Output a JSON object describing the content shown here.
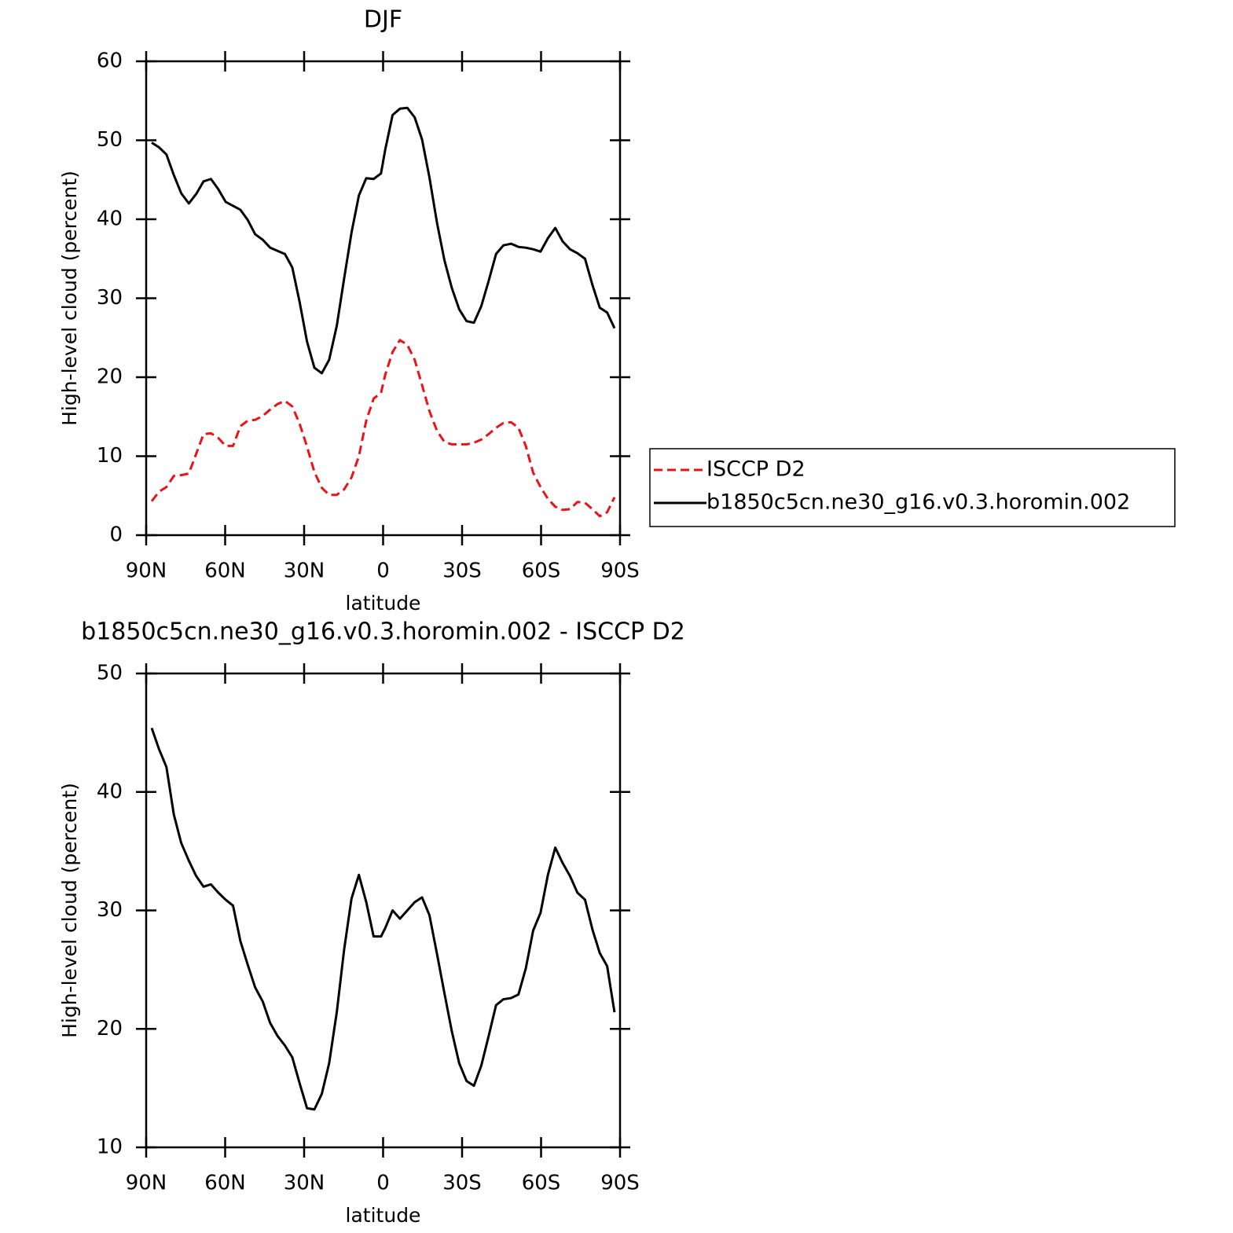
{
  "chart_data": [
    {
      "type": "line",
      "title": "DJF",
      "xlabel": "latitude",
      "ylabel": "High-level cloud (percent)",
      "x": [
        87.9,
        85.1,
        82.3,
        79.5,
        76.7,
        73.8,
        71.0,
        68.2,
        65.4,
        62.6,
        59.8,
        57.0,
        54.2,
        51.4,
        48.6,
        45.7,
        42.9,
        40.1,
        37.3,
        34.5,
        31.7,
        28.9,
        26.1,
        23.3,
        20.5,
        17.6,
        14.8,
        12.0,
        9.2,
        6.4,
        3.6,
        0.8,
        -0.8,
        -3.6,
        -6.4,
        -9.2,
        -12.0,
        -14.8,
        -17.6,
        -20.5,
        -23.3,
        -26.1,
        -28.9,
        -31.7,
        -34.5,
        -37.3,
        -40.1,
        -42.9,
        -45.7,
        -48.6,
        -51.4,
        -54.2,
        -57.0,
        -59.8,
        -62.6,
        -65.4,
        -68.2,
        -71.0,
        -73.8,
        -76.7,
        -79.5,
        -82.3,
        -85.1,
        -87.9
      ],
      "series": [
        {
          "name": "ISCCP D2",
          "color": "#e8141a",
          "dash": true,
          "values": [
            4.3,
            5.5,
            6.1,
            7.5,
            7.6,
            7.8,
            10.3,
            12.8,
            12.9,
            12.3,
            11.3,
            11.3,
            13.8,
            14.5,
            14.6,
            15.1,
            15.9,
            16.6,
            17.0,
            16.3,
            14.1,
            11.2,
            8.0,
            6.0,
            5.1,
            5.1,
            5.8,
            7.3,
            10.0,
            14.5,
            17.3,
            18.0,
            20.3,
            23.2,
            24.7,
            24.1,
            22.2,
            19.0,
            15.7,
            13.2,
            11.8,
            11.5,
            11.5,
            11.5,
            11.7,
            12.1,
            12.8,
            13.6,
            14.2,
            14.3,
            13.6,
            11.3,
            7.9,
            6.1,
            4.6,
            3.6,
            3.2,
            3.3,
            4.2,
            4.1,
            3.3,
            2.4,
            2.9,
            4.8
          ]
        },
        {
          "name": "b1850c5cn.ne30_g16.v0.3.horomin.002",
          "color": "#000000",
          "dash": false,
          "values": [
            49.7,
            49.1,
            48.2,
            45.6,
            43.3,
            42.0,
            43.2,
            44.8,
            45.1,
            43.8,
            42.2,
            41.7,
            41.2,
            39.9,
            38.1,
            37.4,
            36.4,
            36.0,
            35.6,
            33.9,
            29.5,
            24.5,
            21.2,
            20.5,
            22.2,
            26.5,
            32.5,
            38.3,
            43.0,
            45.2,
            45.1,
            45.8,
            48.8,
            53.2,
            54.0,
            54.1,
            52.9,
            50.1,
            45.3,
            39.5,
            34.8,
            31.3,
            28.6,
            27.1,
            26.9,
            29.0,
            32.2,
            35.6,
            36.7,
            36.9,
            36.5,
            36.4,
            36.2,
            35.9,
            37.6,
            38.9,
            37.2,
            36.2,
            35.7,
            35.0,
            31.7,
            28.8,
            28.2,
            26.2
          ]
        }
      ],
      "xlim": [
        90,
        -90
      ],
      "xticks": [
        {
          "value": 90,
          "label": "90N"
        },
        {
          "value": 60,
          "label": "60N"
        },
        {
          "value": 30,
          "label": "30N"
        },
        0,
        {
          "value": -30,
          "label": "30S"
        },
        {
          "value": -60,
          "label": "60S"
        },
        {
          "value": -90,
          "label": "90S"
        }
      ],
      "ylim": [
        0,
        60
      ],
      "yticks": [
        0,
        10,
        20,
        30,
        40,
        50,
        60
      ],
      "legend": "outside-right"
    },
    {
      "type": "line",
      "title": "b1850c5cn.ne30_g16.v0.3.horomin.002 - ISCCP D2",
      "xlabel": "latitude",
      "ylabel": "High-level cloud (percent)",
      "x": [
        87.9,
        85.1,
        82.3,
        79.5,
        76.7,
        73.8,
        71.0,
        68.2,
        65.4,
        62.6,
        59.8,
        57.0,
        54.2,
        51.4,
        48.6,
        45.7,
        42.9,
        40.1,
        37.3,
        34.5,
        31.7,
        28.9,
        26.1,
        23.3,
        20.5,
        17.6,
        14.8,
        12.0,
        9.2,
        6.4,
        3.6,
        0.8,
        -0.8,
        -3.6,
        -6.4,
        -9.2,
        -12.0,
        -14.8,
        -17.6,
        -20.5,
        -23.3,
        -26.1,
        -28.9,
        -31.7,
        -34.5,
        -37.3,
        -40.1,
        -42.9,
        -45.7,
        -48.6,
        -51.4,
        -54.2,
        -57.0,
        -59.8,
        -62.6,
        -65.4,
        -68.2,
        -71.0,
        -73.8,
        -76.7,
        -79.5,
        -82.3,
        -85.1,
        -87.9
      ],
      "series": [
        {
          "color": "#000000",
          "dash": false,
          "values": [
            45.4,
            43.6,
            42.1,
            38.1,
            35.7,
            34.2,
            32.9,
            32.0,
            32.2,
            31.5,
            30.9,
            30.4,
            27.4,
            25.4,
            23.5,
            22.3,
            20.5,
            19.4,
            18.6,
            17.6,
            15.4,
            13.3,
            13.2,
            14.5,
            17.1,
            21.4,
            26.7,
            31.0,
            33.0,
            30.7,
            27.8,
            27.8,
            28.5,
            30.0,
            29.3,
            30.0,
            30.7,
            31.1,
            29.6,
            26.3,
            23.0,
            19.8,
            17.1,
            15.6,
            15.2,
            16.9,
            19.4,
            22.0,
            22.5,
            22.6,
            22.9,
            25.1,
            28.3,
            29.8,
            33.0,
            35.3,
            34.0,
            32.9,
            31.5,
            30.9,
            28.4,
            26.4,
            25.3,
            21.4
          ]
        }
      ],
      "xlim": [
        90,
        -90
      ],
      "xticks": [
        {
          "value": 90,
          "label": "90N"
        },
        {
          "value": 60,
          "label": "60N"
        },
        {
          "value": 30,
          "label": "30N"
        },
        0,
        {
          "value": -30,
          "label": "30S"
        },
        {
          "value": -60,
          "label": "60S"
        },
        {
          "value": -90,
          "label": "90S"
        }
      ],
      "ylim": [
        10,
        50
      ],
      "yticks": [
        10,
        20,
        30,
        40,
        50
      ]
    }
  ]
}
